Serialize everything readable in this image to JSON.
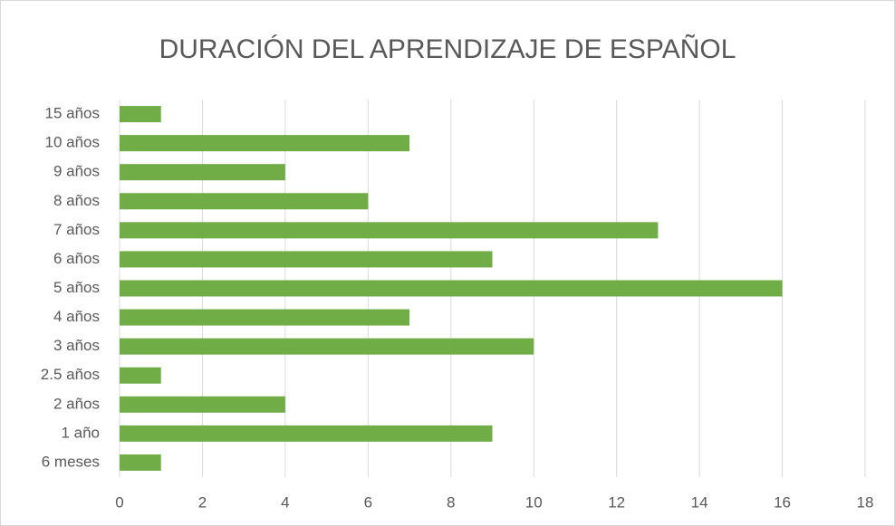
{
  "chart_data": {
    "type": "bar",
    "orientation": "horizontal",
    "title": "DURACIÓN DEL APRENDIZAJE DE ESPAÑOL",
    "categories": [
      "6 meses",
      "1 año",
      "2 años",
      "2.5 años",
      "3 años",
      "4 años",
      "5 años",
      "6 años",
      "7 años",
      "8 años",
      "9 años",
      "10 años",
      "15 años"
    ],
    "values": [
      1,
      9,
      4,
      1,
      10,
      7,
      16,
      9,
      13,
      6,
      4,
      7,
      1
    ],
    "color": "#70ad47",
    "xlim": [
      0,
      18
    ],
    "xticks": [
      0,
      2,
      4,
      6,
      8,
      10,
      12,
      14,
      16,
      18
    ],
    "grid": true
  }
}
